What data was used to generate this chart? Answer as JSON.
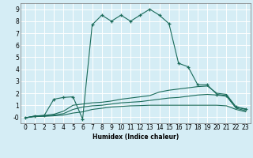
{
  "xlabel": "Humidex (Indice chaleur)",
  "bg_color": "#d5edf5",
  "grid_color": "#ffffff",
  "line_color": "#1a6b5a",
  "xlim": [
    -0.5,
    23.5
  ],
  "ylim": [
    -0.5,
    9.5
  ],
  "xticks": [
    0,
    1,
    2,
    3,
    4,
    5,
    6,
    7,
    8,
    9,
    10,
    11,
    12,
    13,
    14,
    15,
    16,
    17,
    18,
    19,
    20,
    21,
    22,
    23
  ],
  "yticks": [
    0,
    1,
    2,
    3,
    4,
    5,
    6,
    7,
    8,
    9
  ],
  "ytick_labels": [
    "-0",
    "1",
    "2",
    "3",
    "4",
    "5",
    "6",
    "7",
    "8",
    "9"
  ],
  "lines": [
    {
      "x": [
        0,
        1,
        2,
        3,
        4,
        5,
        6,
        7,
        8,
        9,
        10,
        11,
        12,
        13,
        14,
        15,
        16,
        17,
        18,
        19,
        20,
        21,
        22,
        23
      ],
      "y": [
        -0.05,
        0.1,
        0.15,
        1.5,
        1.65,
        1.7,
        -0.15,
        7.7,
        8.5,
        8.0,
        8.5,
        8.0,
        8.5,
        9.0,
        8.5,
        7.8,
        4.5,
        4.2,
        2.7,
        2.7,
        1.9,
        1.8,
        0.85,
        0.7
      ],
      "marker": "+",
      "markersize": 3.5
    },
    {
      "x": [
        0,
        1,
        2,
        3,
        4,
        5,
        6,
        7,
        8,
        9,
        10,
        11,
        12,
        13,
        14,
        15,
        16,
        17,
        18,
        19,
        20,
        21,
        22,
        23
      ],
      "y": [
        -0.05,
        0.1,
        0.15,
        0.25,
        0.5,
        1.0,
        1.1,
        1.2,
        1.25,
        1.35,
        1.5,
        1.6,
        1.7,
        1.8,
        2.1,
        2.25,
        2.35,
        2.45,
        2.55,
        2.6,
        2.0,
        1.9,
        0.85,
        0.65
      ],
      "marker": null,
      "markersize": 0
    },
    {
      "x": [
        0,
        1,
        2,
        3,
        4,
        5,
        6,
        7,
        8,
        9,
        10,
        11,
        12,
        13,
        14,
        15,
        16,
        17,
        18,
        19,
        20,
        21,
        22,
        23
      ],
      "y": [
        -0.05,
        0.07,
        0.1,
        0.18,
        0.3,
        0.65,
        0.85,
        0.95,
        1.0,
        1.1,
        1.2,
        1.25,
        1.3,
        1.4,
        1.5,
        1.6,
        1.65,
        1.75,
        1.85,
        1.9,
        1.85,
        1.75,
        0.75,
        0.55
      ],
      "marker": null,
      "markersize": 0
    },
    {
      "x": [
        0,
        1,
        2,
        3,
        4,
        5,
        6,
        7,
        8,
        9,
        10,
        11,
        12,
        13,
        14,
        15,
        16,
        17,
        18,
        19,
        20,
        21,
        22,
        23
      ],
      "y": [
        -0.05,
        0.05,
        0.08,
        0.12,
        0.18,
        0.35,
        0.45,
        0.65,
        0.75,
        0.85,
        0.9,
        0.95,
        0.97,
        1.0,
        1.0,
        1.0,
        1.0,
        1.0,
        1.0,
        1.0,
        1.0,
        0.95,
        0.65,
        0.45
      ],
      "marker": null,
      "markersize": 0
    }
  ]
}
